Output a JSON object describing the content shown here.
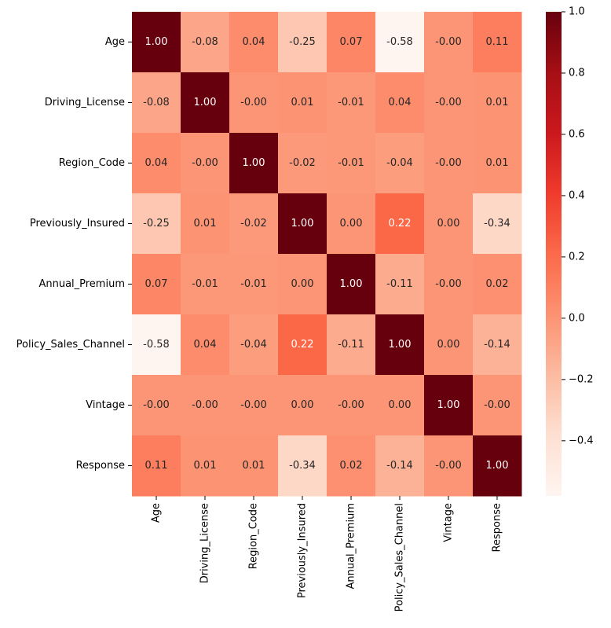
{
  "chart_data": {
    "type": "heatmap",
    "title": "",
    "xlabel": "",
    "ylabel": "",
    "labels": [
      "Age",
      "Driving_License",
      "Region_Code",
      "Previously_Insured",
      "Annual_Premium",
      "Policy_Sales_Channel",
      "Vintage",
      "Response"
    ],
    "values": [
      [
        1.0,
        -0.08,
        0.04,
        -0.25,
        0.07,
        -0.58,
        -0.0,
        0.11
      ],
      [
        -0.08,
        1.0,
        -0.0,
        0.01,
        -0.01,
        0.04,
        -0.0,
        0.01
      ],
      [
        0.04,
        -0.0,
        1.0,
        -0.02,
        -0.01,
        -0.04,
        -0.0,
        0.01
      ],
      [
        -0.25,
        0.01,
        -0.02,
        1.0,
        0.0,
        0.22,
        0.0,
        -0.34
      ],
      [
        0.07,
        -0.01,
        -0.01,
        0.0,
        1.0,
        -0.11,
        -0.0,
        0.02
      ],
      [
        -0.58,
        0.04,
        -0.04,
        0.22,
        -0.11,
        1.0,
        0.0,
        -0.14
      ],
      [
        -0.0,
        -0.0,
        -0.0,
        0.0,
        -0.0,
        0.0,
        1.0,
        -0.0
      ],
      [
        0.11,
        0.01,
        0.01,
        -0.34,
        0.02,
        -0.14,
        -0.0,
        1.0
      ]
    ],
    "cell_text": [
      [
        "1.00",
        "-0.08",
        "0.04",
        "-0.25",
        "0.07",
        "-0.58",
        "-0.00",
        "0.11"
      ],
      [
        "-0.08",
        "1.00",
        "-0.00",
        "0.01",
        "-0.01",
        "0.04",
        "-0.00",
        "0.01"
      ],
      [
        "0.04",
        "-0.00",
        "1.00",
        "-0.02",
        "-0.01",
        "-0.04",
        "-0.00",
        "0.01"
      ],
      [
        "-0.25",
        "0.01",
        "-0.02",
        "1.00",
        "0.00",
        "0.22",
        "0.00",
        "-0.34"
      ],
      [
        "0.07",
        "-0.01",
        "-0.01",
        "0.00",
        "1.00",
        "-0.11",
        "-0.00",
        "0.02"
      ],
      [
        "-0.58",
        "0.04",
        "-0.04",
        "0.22",
        "-0.11",
        "1.00",
        "0.00",
        "-0.14"
      ],
      [
        "-0.00",
        "-0.00",
        "-0.00",
        "0.00",
        "-0.00",
        "0.00",
        "1.00",
        "-0.00"
      ],
      [
        "0.11",
        "0.01",
        "0.01",
        "-0.34",
        "0.02",
        "-0.14",
        "-0.00",
        "1.00"
      ]
    ],
    "colormap": "Reds",
    "vmin": -0.58,
    "vmax": 1.0,
    "colorbar_ticks": [
      1.0,
      0.8,
      0.6,
      0.4,
      0.2,
      0.0,
      -0.2,
      -0.4
    ],
    "colorbar_tick_labels": [
      "1.0",
      "0.8",
      "0.6",
      "0.4",
      "0.2",
      "0.0",
      "−0.2",
      "−0.4"
    ]
  }
}
